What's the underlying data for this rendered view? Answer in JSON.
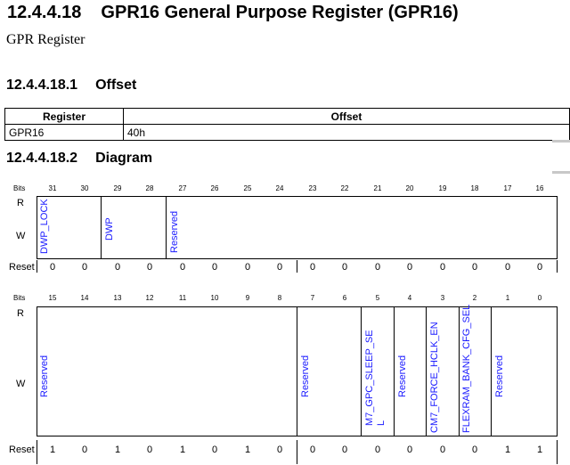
{
  "heading": {
    "number": "12.4.4.18",
    "title": "GPR16 General Purpose Register (GPR16)"
  },
  "subtitle": "GPR Register",
  "offset_section": {
    "number": "12.4.4.18.1",
    "title": "Offset"
  },
  "offset_table": {
    "headers": [
      "Register",
      "Offset"
    ],
    "rows": [
      {
        "register": "GPR16",
        "offset": "40h"
      }
    ]
  },
  "diagram_section": {
    "number": "12.4.4.18.2",
    "title": "Diagram"
  },
  "diagram": {
    "bits_label": "Bits",
    "read_label": "R",
    "write_label": "W",
    "reset_label": "Reset",
    "upper": {
      "bits": [
        "31",
        "30",
        "29",
        "28",
        "27",
        "26",
        "25",
        "24",
        "23",
        "22",
        "21",
        "20",
        "19",
        "18",
        "17",
        "16"
      ],
      "reset": [
        "0",
        "0",
        "0",
        "0",
        "0",
        "0",
        "0",
        "0",
        "0",
        "0",
        "0",
        "0",
        "0",
        "0",
        "0",
        "0"
      ],
      "fields": [
        "DWP_LOCK",
        "DWP",
        "Reserved"
      ]
    },
    "lower": {
      "bits": [
        "15",
        "14",
        "13",
        "12",
        "11",
        "10",
        "9",
        "8",
        "7",
        "6",
        "5",
        "4",
        "3",
        "2",
        "1",
        "0"
      ],
      "reset": [
        "1",
        "0",
        "1",
        "0",
        "1",
        "0",
        "1",
        "0",
        "0",
        "0",
        "0",
        "0",
        "0",
        "0",
        "1",
        "1"
      ],
      "fields": [
        "Reserved",
        "Reserved",
        "M7_GPC_SLEEP_SE",
        "L",
        "Reserved",
        "CM7_FORCE_HCLK_EN",
        "FLEXRAM_BANK_CFG_SEL",
        "Reserved"
      ]
    },
    "field_color": "#1a1aff"
  }
}
